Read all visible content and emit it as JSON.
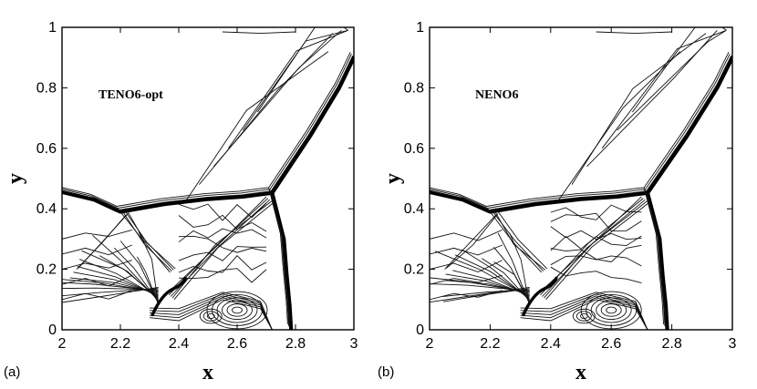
{
  "chart_data": [
    {
      "type": "contour",
      "panel_label": "(a)",
      "title": "TENO6-opt",
      "xlabel": "x",
      "ylabel": "y",
      "xlim": [
        2,
        3
      ],
      "ylim": [
        0,
        1
      ],
      "xticks": [
        "2",
        "2.2",
        "2.4",
        "2.6",
        "2.8",
        "3"
      ],
      "yticks": [
        "0",
        "0.2",
        "0.4",
        "0.6",
        "0.8",
        "1"
      ],
      "grid": false
    },
    {
      "type": "contour",
      "panel_label": "(b)",
      "title": "NENO6",
      "xlabel": "x",
      "ylabel": "y",
      "xlim": [
        2,
        3
      ],
      "ylim": [
        0,
        1
      ],
      "xticks": [
        "2",
        "2.2",
        "2.4",
        "2.6",
        "2.8",
        "3"
      ],
      "yticks": [
        "0",
        "0.2",
        "0.4",
        "0.6",
        "0.8",
        "1"
      ],
      "grid": false
    }
  ]
}
